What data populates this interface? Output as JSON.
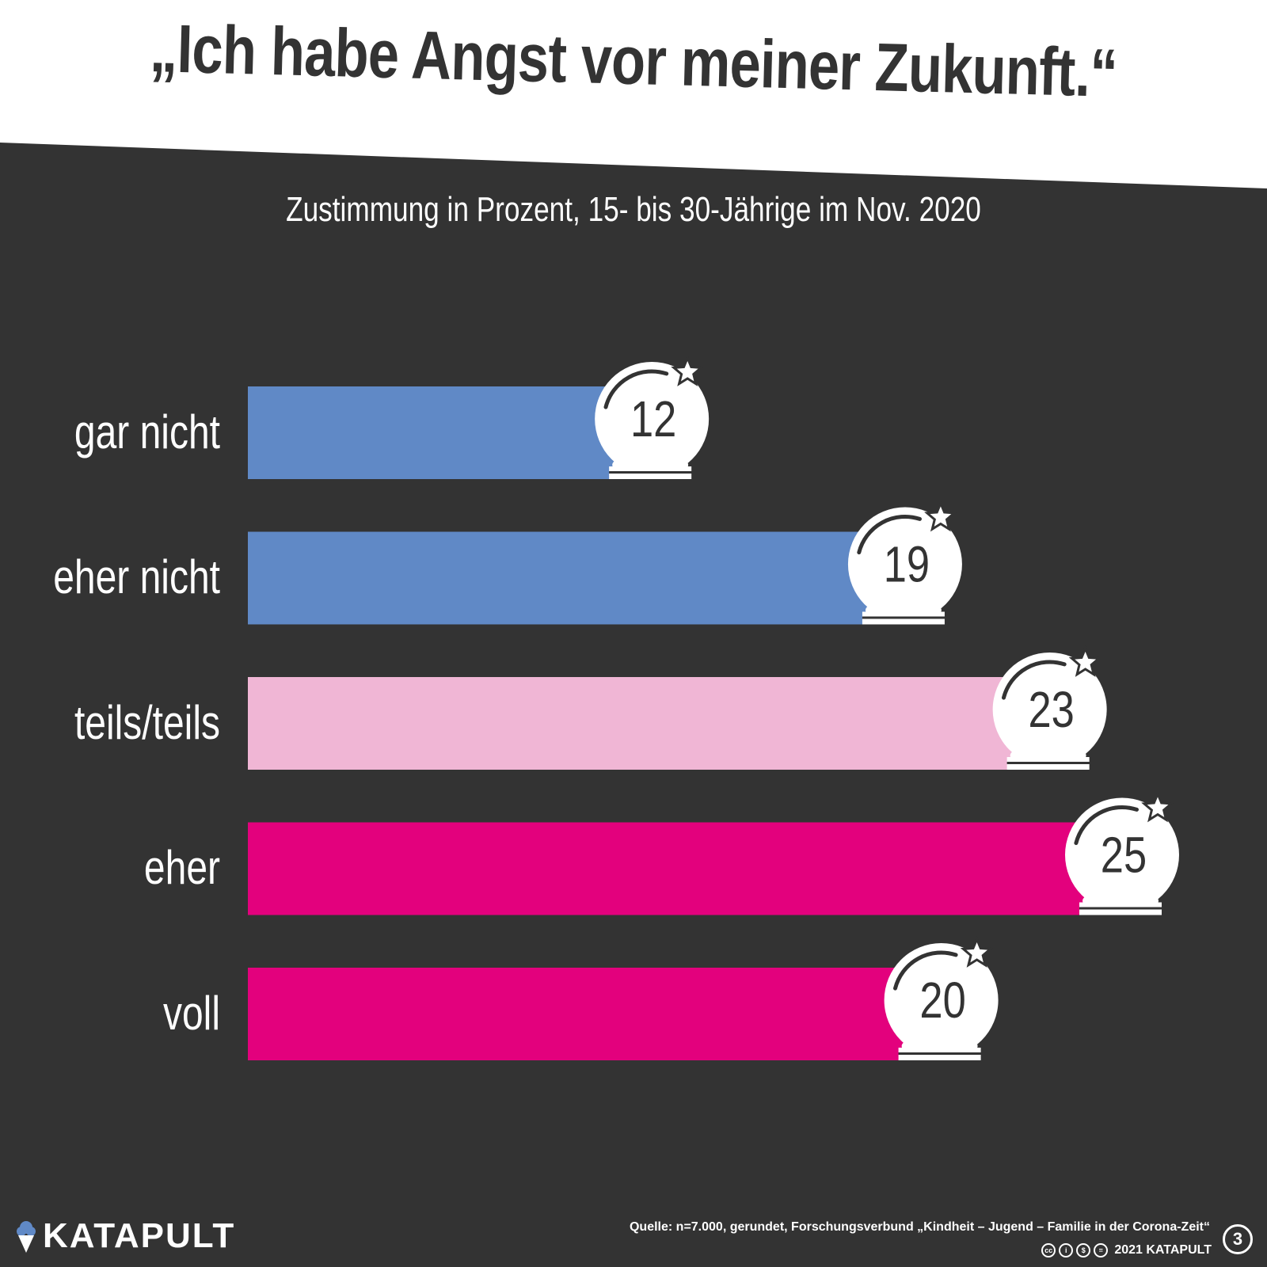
{
  "title": "„Ich habe Angst vor meiner Zukunft.“",
  "subtitle": "Zustimmung in Prozent, 15- bis 30-Jährige im Nov. 2020",
  "colors": {
    "background": "#333333",
    "title_band": "#ffffff",
    "blue": "#6089c6",
    "light_pink": "#f0b6d5",
    "magenta": "#e3017d",
    "text_dark": "#333333",
    "text_light": "#ffffff"
  },
  "icons": [
    "crystal-ball-icon",
    "star-icon",
    "ice-cream-icon",
    "cc-icon",
    "by-icon",
    "nc-icon",
    "nd-icon"
  ],
  "chart_data": {
    "type": "bar",
    "orientation": "horizontal",
    "title": "„Ich habe Angst vor meiner Zukunft.“",
    "subtitle": "Zustimmung in Prozent, 15- bis 30-Jährige im Nov. 2020",
    "categories": [
      "gar nicht",
      "eher nicht",
      "teils/teils",
      "eher",
      "voll"
    ],
    "values": [
      12,
      19,
      23,
      25,
      20
    ],
    "bar_colors": [
      "#6089c6",
      "#6089c6",
      "#f0b6d5",
      "#e3017d",
      "#e3017d"
    ],
    "xlim": [
      0,
      25
    ],
    "grid": false,
    "legend": "none"
  },
  "footer": {
    "brand": "KATAPULT",
    "source": "Quelle: n=7.000, gerundet, Forschungsverbund „Kindheit – Jugend – Familie in der Corona-Zeit“",
    "copyright": "2021 KATAPULT",
    "cc_icons": [
      "cc",
      "by",
      "nc",
      "nd"
    ],
    "issue": "3"
  }
}
